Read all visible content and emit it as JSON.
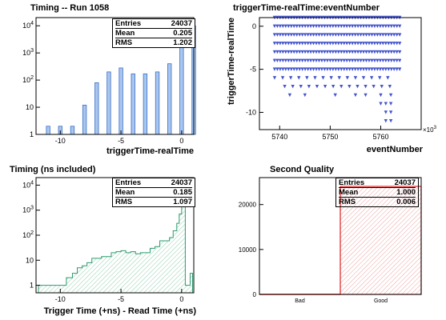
{
  "chart_data": [
    {
      "type": "bar",
      "title": "Timing -- Run 1058",
      "xlabel": "triggerTime-realTime",
      "ylabel": "",
      "xlim": [
        -12,
        1
      ],
      "ylim": [
        1,
        20000
      ],
      "yscale": "log",
      "xticks": [
        -10,
        -5,
        0
      ],
      "yticks": [
        {
          "v": 1,
          "base": "1",
          "exp": ""
        },
        {
          "v": 10,
          "base": "10",
          "exp": ""
        },
        {
          "v": 100,
          "base": "10",
          "exp": "2"
        },
        {
          "v": 1000,
          "base": "10",
          "exp": "3"
        },
        {
          "v": 10000,
          "base": "10",
          "exp": "4"
        }
      ],
      "color": "#3a6fc8",
      "fill": "#a9c6ee",
      "x": [
        -11,
        -10,
        -9,
        -8,
        -7,
        -6,
        -5,
        -4,
        -3,
        -2,
        -1,
        0,
        1
      ],
      "values": [
        2,
        2,
        2,
        12,
        80,
        200,
        280,
        170,
        170,
        200,
        400,
        12000,
        10000
      ],
      "stats": {
        "entries_label": "Entries",
        "entries": "24037",
        "mean_label": "Mean",
        "mean": "0.205",
        "rms_label": "RMS",
        "rms": "1.202"
      }
    },
    {
      "type": "scatter",
      "title": "triggerTime-realTime:eventNumber",
      "xlabel": "eventNumber",
      "ylabel": "triggerTime-realTime",
      "xlim": [
        5736,
        5768
      ],
      "ylim": [
        -12,
        1
      ],
      "xticks": [
        5740,
        5750,
        5760
      ],
      "yticks": [
        0,
        -5,
        -10
      ],
      "x_exponent_base": "×10",
      "x_exponent": "3",
      "color": "#4455cc",
      "rows": [
        {
          "y": 1,
          "x_start": 5739,
          "x_end": 5764
        },
        {
          "y": 0,
          "x_start": 5739,
          "x_end": 5764
        },
        {
          "y": -1,
          "x_start": 5739,
          "x_end": 5764
        },
        {
          "y": -2,
          "x_start": 5739,
          "x_end": 5764
        },
        {
          "y": -3,
          "x_start": 5739,
          "x_end": 5764
        },
        {
          "y": -4,
          "x_start": 5739,
          "x_end": 5764
        },
        {
          "y": -5,
          "x_start": 5739,
          "x_end": 5764
        },
        {
          "y": -6,
          "x_start": 5739,
          "x_end": 5763,
          "sparse": true
        },
        {
          "y": -7,
          "x_start": 5741,
          "x_end": 5763,
          "sparse": true
        }
      ],
      "extra_points": [
        [
          5745,
          -8
        ],
        [
          5751,
          -8
        ],
        [
          5755,
          -8
        ],
        [
          5757,
          -8
        ],
        [
          5760,
          -8
        ],
        [
          5762,
          -8
        ],
        [
          5742,
          -8
        ],
        [
          5761,
          -9
        ],
        [
          5762,
          -9
        ],
        [
          5760,
          -9
        ],
        [
          5761,
          -10
        ],
        [
          5762,
          -10
        ],
        [
          5761,
          -11
        ],
        [
          5762,
          -11
        ]
      ]
    },
    {
      "type": "area",
      "title": "Timing (ns included)",
      "xlabel": "Trigger Time (+ns) - Read Time (+ns)",
      "ylabel": "",
      "xlim": [
        -12,
        1
      ],
      "ylim": [
        0.5,
        20000
      ],
      "yscale": "log",
      "xticks": [
        -10,
        -5,
        0
      ],
      "yticks": [
        {
          "v": 1,
          "base": "1",
          "exp": ""
        },
        {
          "v": 10,
          "base": "10",
          "exp": ""
        },
        {
          "v": 100,
          "base": "10",
          "exp": "2"
        },
        {
          "v": 1000,
          "base": "10",
          "exp": "3"
        },
        {
          "v": 10000,
          "base": "10",
          "exp": "4"
        }
      ],
      "color": "#2e9a6e",
      "x": [
        -11.8,
        -11.4,
        -11.0,
        -10.5,
        -10.0,
        -9.5,
        -9.0,
        -8.6,
        -8.2,
        -7.8,
        -7.4,
        -7.0,
        -6.6,
        -6.2,
        -5.8,
        -5.4,
        -5.0,
        -4.6,
        -4.2,
        -3.8,
        -3.4,
        -3.0,
        -2.6,
        -2.2,
        -1.8,
        -1.4,
        -1.0,
        -0.7,
        -0.4,
        -0.2,
        0.0,
        0.1,
        0.3,
        0.5,
        0.7
      ],
      "values": [
        1,
        1,
        1,
        1,
        1,
        2,
        3,
        5,
        6,
        8,
        12,
        12,
        14,
        14,
        20,
        22,
        24,
        20,
        22,
        18,
        20,
        20,
        30,
        35,
        60,
        60,
        80,
        150,
        300,
        700,
        2000,
        10000,
        1,
        1,
        3
      ],
      "stats": {
        "entries_label": "Entries",
        "entries": "24037",
        "mean_label": "Mean",
        "mean": "0.185",
        "rms_label": "RMS",
        "rms": "1.097"
      }
    },
    {
      "type": "bar",
      "title": "Second Quality",
      "xlabel": "",
      "ylabel": "",
      "categories": [
        "Bad",
        "Good"
      ],
      "values": [
        0,
        24037
      ],
      "ylim": [
        0,
        26000
      ],
      "yticks": [
        0,
        10000,
        20000
      ],
      "color": "#e02020",
      "stats": {
        "entries_label": "Entries",
        "entries": "24037",
        "mean_label": "Mean",
        "mean": "1.000",
        "rms_label": "RMS",
        "rms": "0.006"
      }
    }
  ]
}
